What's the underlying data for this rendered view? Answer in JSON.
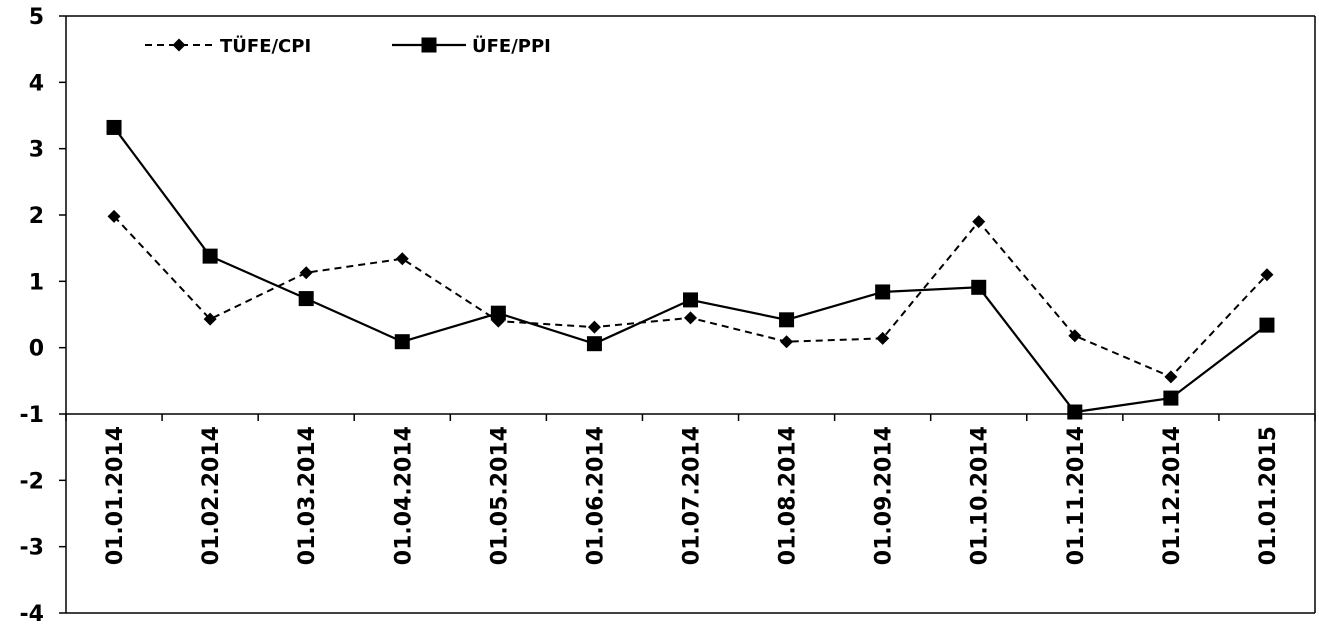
{
  "chart_data": {
    "type": "line",
    "categories": [
      "01.01.2014",
      "01.02.2014",
      "01.03.2014",
      "01.04.2014",
      "01.05.2014",
      "01.06.2014",
      "01.07.2014",
      "01.08.2014",
      "01.09.2014",
      "01.10.2014",
      "01.11.2014",
      "01.12.2014",
      "01.01.2015"
    ],
    "series": [
      {
        "name": "TÜFE/CPI",
        "values": [
          1.98,
          0.43,
          1.13,
          1.34,
          0.4,
          0.31,
          0.45,
          0.09,
          0.14,
          1.9,
          0.18,
          -0.44,
          1.1
        ],
        "line": "dashed",
        "marker": "diamond",
        "color": "#000000"
      },
      {
        "name": "ÜFE/PPI",
        "values": [
          3.32,
          1.38,
          0.74,
          0.09,
          0.52,
          0.06,
          0.72,
          0.42,
          0.84,
          0.91,
          -0.97,
          -0.76,
          0.34
        ],
        "line": "solid",
        "marker": "square",
        "color": "#000000"
      }
    ],
    "ylim": [
      -4,
      5
    ],
    "yticks": [
      "5",
      "4",
      "3",
      "2",
      "1",
      "0",
      "-1",
      "-2",
      "-3",
      "-4"
    ],
    "ytick_values": [
      5,
      4,
      3,
      2,
      1,
      0,
      -1,
      -2,
      -3,
      -4
    ],
    "x_axis_crosses_at": -1,
    "grid": false,
    "legend_position": "top-left",
    "title": "",
    "xlabel": "",
    "ylabel": ""
  }
}
